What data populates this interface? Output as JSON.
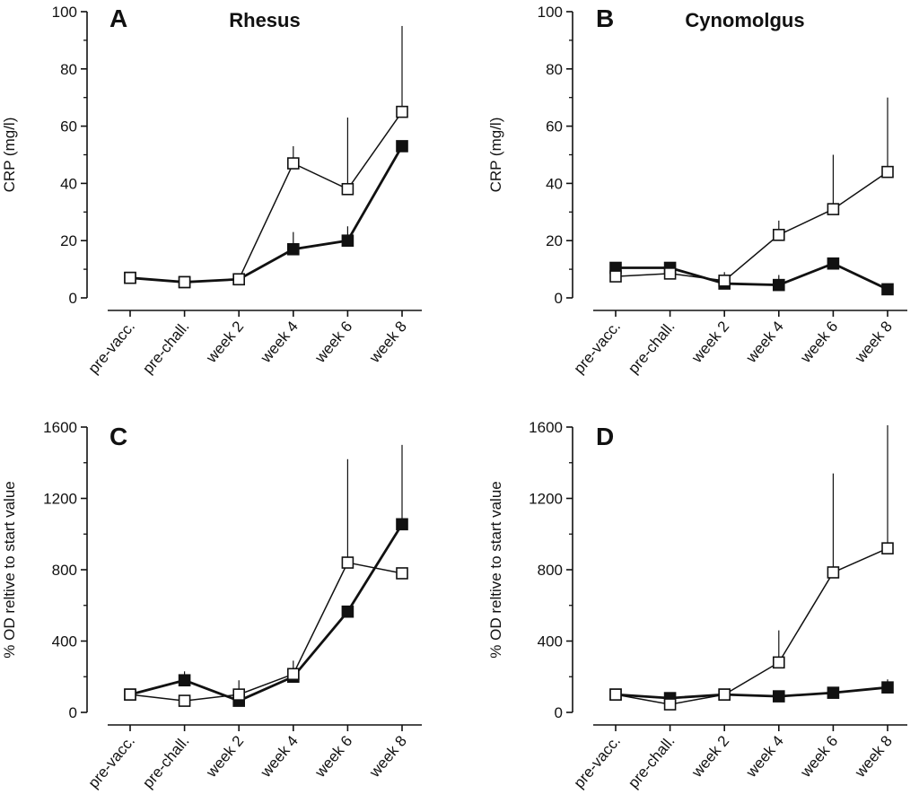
{
  "figure": {
    "colors": {
      "ink": "#111111",
      "filled": "#111111",
      "open": "#ffffff"
    },
    "panels": [
      {
        "letter": "A",
        "title": "Rhesus",
        "ylabel": "CRP (mg/l)",
        "chart_data": {
          "type": "line",
          "categories": [
            "pre-vacc.",
            "pre-chall.",
            "week 2",
            "week 4",
            "week 6",
            "week 8"
          ],
          "ylim": [
            0,
            100
          ],
          "yticks": [
            0,
            20,
            40,
            60,
            80,
            100
          ],
          "ylabel": "CRP (mg/l)",
          "grid": false,
          "legend": "none",
          "series": [
            {
              "marker": "open-square",
              "values": [
                7,
                5.5,
                6.5,
                47,
                38,
                65
              ],
              "error_upper": [
                null,
                null,
                null,
                53,
                63,
                95
              ]
            },
            {
              "marker": "filled-square",
              "values": [
                7,
                5.5,
                6.5,
                17,
                20,
                53
              ],
              "error_upper": [
                null,
                null,
                null,
                23,
                25,
                null
              ]
            }
          ]
        }
      },
      {
        "letter": "B",
        "title": "Cynomolgus",
        "ylabel": "CRP (mg/l)",
        "chart_data": {
          "type": "line",
          "categories": [
            "pre-vacc.",
            "pre-chall.",
            "week 2",
            "week 4",
            "week 6",
            "week 8"
          ],
          "ylim": [
            0,
            100
          ],
          "yticks": [
            0,
            20,
            40,
            60,
            80,
            100
          ],
          "ylabel": "CRP (mg/l)",
          "grid": false,
          "legend": "none",
          "series": [
            {
              "marker": "open-square",
              "values": [
                7.5,
                8.5,
                6,
                22,
                31,
                44
              ],
              "error_upper": [
                null,
                null,
                9,
                27,
                50,
                70
              ]
            },
            {
              "marker": "filled-square",
              "values": [
                10.5,
                10.5,
                5,
                4.5,
                12,
                3
              ],
              "error_upper": [
                null,
                null,
                null,
                8,
                null,
                null
              ]
            }
          ]
        }
      },
      {
        "letter": "C",
        "title": "",
        "ylabel": "% OD reltive to start value",
        "chart_data": {
          "type": "line",
          "categories": [
            "pre-vacc.",
            "pre-chall.",
            "week 2",
            "week 4",
            "week 6",
            "week 8"
          ],
          "ylim": [
            0,
            1600
          ],
          "yticks": [
            0,
            400,
            800,
            1200,
            1600
          ],
          "ylabel": "% OD reltive to start value",
          "grid": false,
          "legend": "none",
          "series": [
            {
              "marker": "open-square",
              "values": [
                100,
                65,
                100,
                215,
                840,
                780
              ],
              "error_upper": [
                null,
                null,
                180,
                290,
                1420,
                null
              ]
            },
            {
              "marker": "filled-square",
              "values": [
                100,
                180,
                65,
                200,
                565,
                1055
              ],
              "error_upper": [
                null,
                230,
                null,
                null,
                null,
                1500
              ]
            }
          ]
        }
      },
      {
        "letter": "D",
        "title": "",
        "ylabel": "% OD reltive to start value",
        "chart_data": {
          "type": "line",
          "categories": [
            "pre-vacc.",
            "pre-chall.",
            "week 2",
            "week 4",
            "week 6",
            "week 8"
          ],
          "ylim": [
            0,
            1600
          ],
          "yticks": [
            0,
            400,
            800,
            1200,
            1600
          ],
          "ylabel": "% OD reltive to start value",
          "grid": false,
          "legend": "none",
          "series": [
            {
              "marker": "open-square",
              "values": [
                100,
                45,
                100,
                280,
                785,
                920
              ],
              "error_upper": [
                null,
                null,
                null,
                460,
                1340,
                1610
              ]
            },
            {
              "marker": "filled-square",
              "values": [
                100,
                80,
                100,
                90,
                110,
                140
              ],
              "error_upper": [
                null,
                null,
                null,
                null,
                null,
                185
              ]
            }
          ]
        }
      }
    ]
  }
}
